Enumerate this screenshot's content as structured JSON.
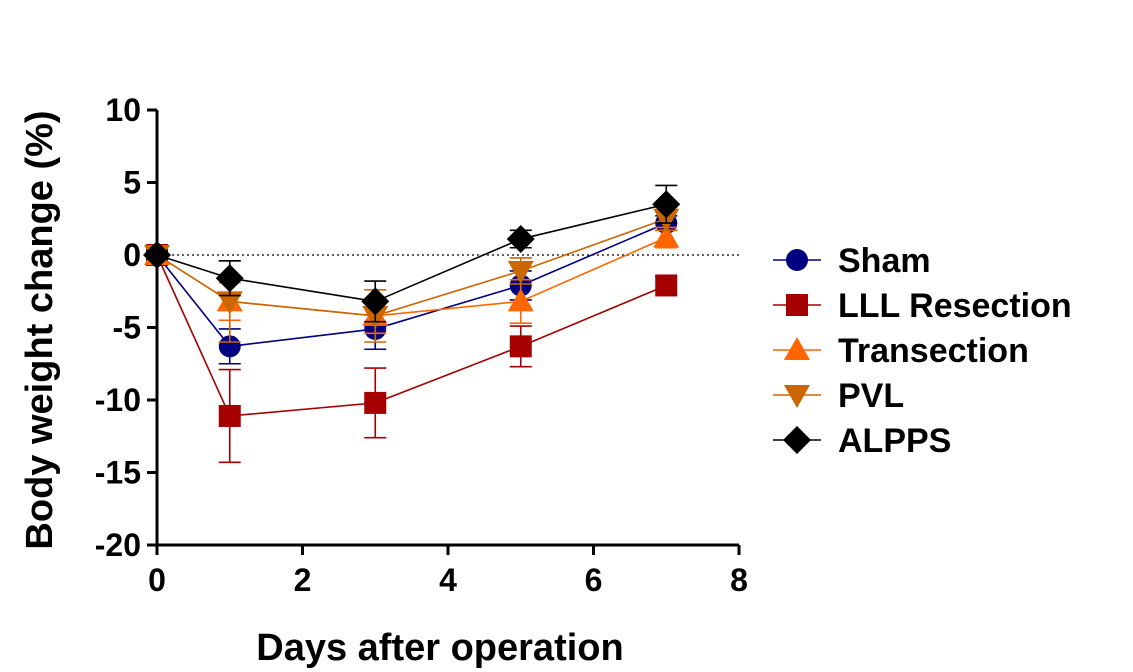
{
  "chart_data": {
    "type": "line",
    "xlabel": "Days after operation",
    "ylabel": "Body weight change (%)",
    "xlim": [
      0,
      8
    ],
    "ylim": [
      -20,
      10
    ],
    "xticks": [
      0,
      2,
      4,
      6,
      8
    ],
    "yticks": [
      10,
      5,
      0,
      -5,
      -10,
      -15,
      -20
    ],
    "x_tick_labels": [
      "0",
      "2",
      "4",
      "6",
      "8"
    ],
    "y_tick_labels": [
      "10",
      "5",
      "0",
      "-5",
      "-10",
      "-15",
      "-20"
    ],
    "reference_line": {
      "y": 0,
      "style": "dotted"
    },
    "grid": false,
    "legend_position": "right",
    "x": [
      0,
      1,
      3,
      5,
      7
    ],
    "series": [
      {
        "name": "Sham",
        "marker": "circle",
        "color": "#000080",
        "values": [
          0,
          -6.3,
          -5.1,
          -2.1,
          2.2
        ],
        "errors": [
          0.3,
          1.2,
          1.4,
          1.0,
          0.5
        ]
      },
      {
        "name": "LLL Resection",
        "marker": "square",
        "color": "#a50000",
        "values": [
          0,
          -11.1,
          -10.2,
          -6.3,
          -2.1
        ],
        "errors": [
          0.3,
          3.2,
          2.4,
          1.4,
          0.6
        ]
      },
      {
        "name": "Transection",
        "marker": "triangle-up",
        "color": "#ff6600",
        "values": [
          0,
          -3.2,
          -4.2,
          -3.2,
          1.2
        ],
        "errors": [
          0.3,
          1.3,
          1.2,
          1.5,
          0.7
        ]
      },
      {
        "name": "PVL",
        "marker": "triangle-down",
        "color": "#cc6600",
        "values": [
          0,
          -3.2,
          -4.2,
          -1.1,
          2.5
        ],
        "errors": [
          0.3,
          2.8,
          1.8,
          0.9,
          0.8
        ]
      },
      {
        "name": "ALPPS",
        "marker": "diamond",
        "color": "#000000",
        "values": [
          0,
          -1.6,
          -3.2,
          1.1,
          3.5
        ],
        "errors": [
          0.3,
          1.2,
          1.4,
          0.6,
          1.3
        ]
      }
    ]
  }
}
